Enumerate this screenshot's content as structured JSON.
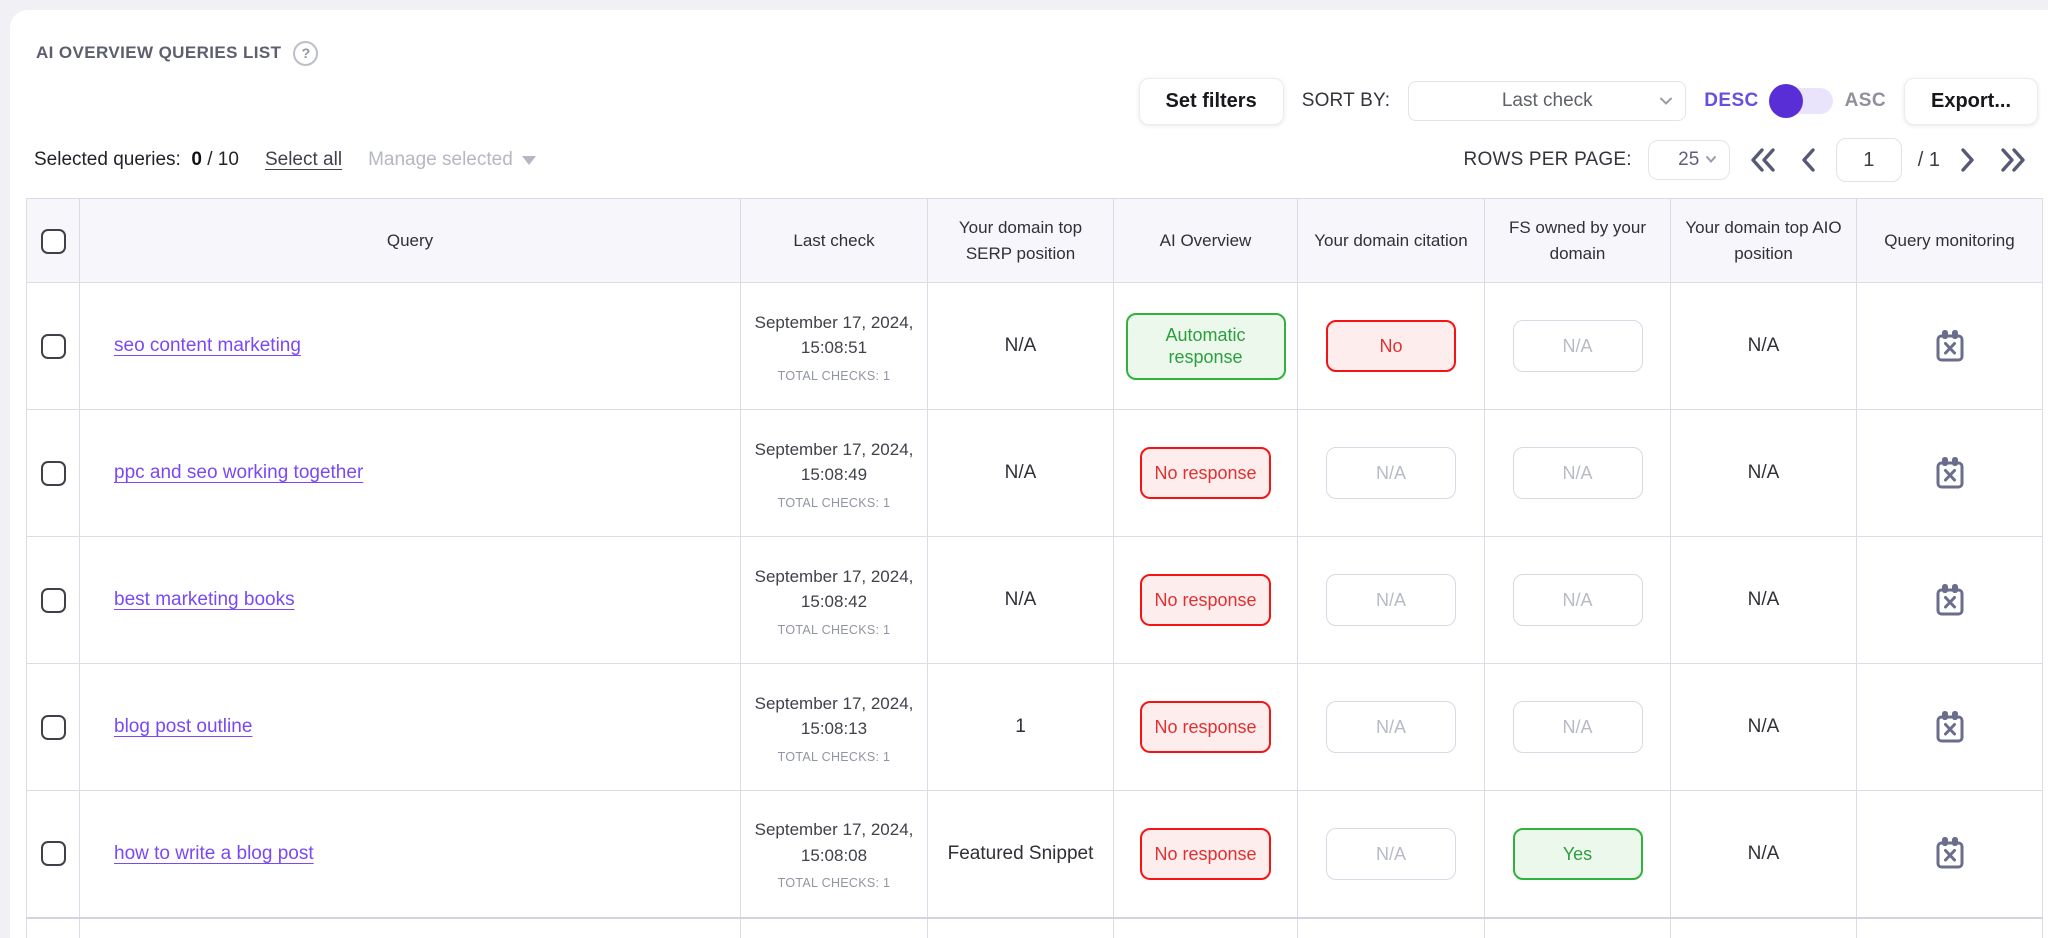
{
  "header": {
    "title": "AI OVERVIEW QUERIES LIST",
    "help_glyph": "?"
  },
  "toolbar": {
    "set_filters_label": "Set filters",
    "sort_by_label": "SORT BY:",
    "sort_value": "Last check",
    "desc_label": "DESC",
    "asc_label": "ASC",
    "sort_direction": "desc",
    "export_label": "Export..."
  },
  "selection_bar": {
    "selected_label": "Selected queries:",
    "selected_count": "0",
    "selected_total": "/ 10",
    "select_all_label": "Select all",
    "manage_selected_label": "Manage selected"
  },
  "pagination": {
    "rows_per_page_label": "ROWS PER PAGE:",
    "rows_per_page_value": "25",
    "current_page": "1",
    "total_pages": "/ 1"
  },
  "table": {
    "columns": [
      "Query",
      "Last check",
      "Your domain top SERP position",
      "AI Overview",
      "Your domain citation",
      "FS owned by your domain",
      "Your domain top AIO position",
      "Query monitoring"
    ],
    "rows": [
      {
        "query": "seo content marketing",
        "last_check": "September 17, 2024, 15:08:51",
        "total_checks": "TOTAL CHECKS: 1",
        "serp_position": "N/A",
        "ai_overview": {
          "label": "Automatic response",
          "style": "green"
        },
        "citation": {
          "label": "No",
          "style": "red"
        },
        "fs_owned": {
          "label": "N/A",
          "style": "gray"
        },
        "aio_position": "N/A"
      },
      {
        "query": "ppc and seo working together",
        "last_check": "September 17, 2024, 15:08:49",
        "total_checks": "TOTAL CHECKS: 1",
        "serp_position": "N/A",
        "ai_overview": {
          "label": "No response",
          "style": "red"
        },
        "citation": {
          "label": "N/A",
          "style": "gray"
        },
        "fs_owned": {
          "label": "N/A",
          "style": "gray"
        },
        "aio_position": "N/A"
      },
      {
        "query": "best marketing books",
        "last_check": "September 17, 2024, 15:08:42",
        "total_checks": "TOTAL CHECKS: 1",
        "serp_position": "N/A",
        "ai_overview": {
          "label": "No response",
          "style": "red"
        },
        "citation": {
          "label": "N/A",
          "style": "gray"
        },
        "fs_owned": {
          "label": "N/A",
          "style": "gray"
        },
        "aio_position": "N/A"
      },
      {
        "query": "blog post outline",
        "last_check": "September 17, 2024, 15:08:13",
        "total_checks": "TOTAL CHECKS: 1",
        "serp_position": "1",
        "ai_overview": {
          "label": "No response",
          "style": "red"
        },
        "citation": {
          "label": "N/A",
          "style": "gray"
        },
        "fs_owned": {
          "label": "N/A",
          "style": "gray"
        },
        "aio_position": "N/A"
      },
      {
        "query": "how to write a blog post",
        "last_check": "September 17, 2024, 15:08:08",
        "total_checks": "TOTAL CHECKS: 1",
        "serp_position": "Featured Snippet",
        "ai_overview": {
          "label": "No response",
          "style": "red"
        },
        "citation": {
          "label": "N/A",
          "style": "gray"
        },
        "fs_owned": {
          "label": "Yes",
          "style": "green"
        },
        "aio_position": "N/A"
      }
    ]
  },
  "colors": {
    "accent_purple": "#5a2ed6",
    "link_purple": "#7a49f5",
    "desc_active": "#6550e0",
    "badge_green": "#2b9f3e",
    "badge_red": "#e03131",
    "badge_gray_text": "#b8bac7",
    "icon_slate": "#6a6e8c",
    "table_border": "#dcdbe7",
    "header_bg": "#f7f7fb"
  }
}
